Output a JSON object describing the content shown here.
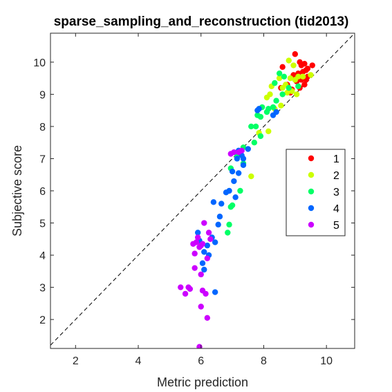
{
  "chart_data": {
    "type": "scatter",
    "title": "sparse_sampling_and_reconstruction (tid2013)",
    "xlabel": "Metric prediction",
    "ylabel": "Subjective score",
    "xlim": [
      1.2,
      10.9
    ],
    "ylim": [
      1.1,
      10.9
    ],
    "xticks": [
      2,
      4,
      6,
      8,
      10
    ],
    "yticks": [
      2,
      3,
      4,
      5,
      6,
      7,
      8,
      9,
      10
    ],
    "grid": false,
    "box": true,
    "legend_position": "right",
    "reference_line": "dashed diagonal y = x",
    "series": [
      {
        "name": "1",
        "color": "#ff0000",
        "points": [
          [
            9.0,
            10.25
          ],
          [
            9.15,
            10.0
          ],
          [
            9.3,
            9.95
          ],
          [
            9.35,
            9.75
          ],
          [
            9.25,
            9.7
          ],
          [
            9.1,
            9.65
          ],
          [
            9.4,
            9.8
          ],
          [
            9.55,
            9.9
          ],
          [
            8.6,
            9.85
          ],
          [
            8.75,
            9.3
          ],
          [
            8.9,
            9.15
          ],
          [
            9.05,
            9.4
          ],
          [
            9.15,
            9.2
          ],
          [
            9.3,
            9.3
          ],
          [
            9.4,
            9.55
          ],
          [
            8.55,
            9.2
          ],
          [
            8.85,
            9.05
          ],
          [
            9.2,
            9.45
          ],
          [
            9.35,
            9.45
          ],
          [
            8.95,
            9.6
          ],
          [
            9.2,
            9.9
          ]
        ]
      },
      {
        "name": "2",
        "color": "#ccff00",
        "points": [
          [
            8.8,
            10.05
          ],
          [
            8.95,
            9.9
          ],
          [
            9.1,
            9.55
          ],
          [
            9.25,
            9.55
          ],
          [
            8.85,
            9.5
          ],
          [
            9.0,
            9.45
          ],
          [
            9.5,
            9.6
          ],
          [
            8.7,
            9.3
          ],
          [
            8.5,
            9.5
          ],
          [
            8.6,
            9.2
          ],
          [
            8.25,
            9.25
          ],
          [
            8.2,
            9.0
          ],
          [
            8.1,
            8.9
          ],
          [
            8.75,
            9.05
          ],
          [
            8.35,
            8.55
          ],
          [
            8.55,
            8.65
          ],
          [
            8.15,
            7.85
          ],
          [
            7.85,
            7.8
          ],
          [
            7.6,
            6.45
          ],
          [
            8.9,
            9.1
          ],
          [
            9.05,
            9.0
          ]
        ]
      },
      {
        "name": "3",
        "color": "#00ff66",
        "points": [
          [
            8.5,
            9.65
          ],
          [
            8.65,
            9.55
          ],
          [
            8.35,
            9.35
          ],
          [
            8.6,
            9.0
          ],
          [
            8.8,
            9.2
          ],
          [
            8.4,
            8.8
          ],
          [
            8.15,
            8.55
          ],
          [
            7.95,
            8.6
          ],
          [
            8.1,
            8.45
          ],
          [
            8.3,
            8.6
          ],
          [
            7.8,
            8.35
          ],
          [
            7.9,
            8.3
          ],
          [
            7.6,
            8.0
          ],
          [
            7.75,
            8.0
          ],
          [
            7.9,
            7.7
          ],
          [
            7.7,
            7.5
          ],
          [
            7.35,
            7.35
          ],
          [
            7.15,
            7.1
          ],
          [
            7.35,
            6.85
          ],
          [
            6.95,
            6.7
          ],
          [
            7.25,
            6.0
          ],
          [
            7.0,
            5.55
          ],
          [
            6.95,
            5.5
          ],
          [
            6.9,
            4.95
          ],
          [
            6.85,
            4.7
          ],
          [
            9.1,
            9.25
          ]
        ]
      },
      {
        "name": "4",
        "color": "#0066ff",
        "points": [
          [
            8.4,
            8.45
          ],
          [
            8.3,
            8.35
          ],
          [
            7.85,
            8.55
          ],
          [
            7.8,
            8.5
          ],
          [
            7.5,
            7.3
          ],
          [
            7.2,
            7.25
          ],
          [
            7.3,
            7.1
          ],
          [
            7.15,
            7.0
          ],
          [
            7.35,
            7.0
          ],
          [
            7.35,
            6.8
          ],
          [
            7.2,
            6.55
          ],
          [
            7.0,
            6.6
          ],
          [
            7.05,
            6.3
          ],
          [
            6.9,
            6.0
          ],
          [
            7.1,
            5.8
          ],
          [
            6.8,
            5.95
          ],
          [
            6.65,
            5.6
          ],
          [
            6.4,
            5.65
          ],
          [
            6.6,
            5.2
          ],
          [
            6.55,
            4.95
          ],
          [
            6.35,
            4.55
          ],
          [
            6.45,
            4.4
          ],
          [
            6.2,
            4.3
          ],
          [
            6.1,
            4.1
          ],
          [
            6.25,
            4.0
          ],
          [
            6.05,
            3.75
          ],
          [
            6.1,
            3.55
          ],
          [
            5.9,
            4.7
          ],
          [
            5.95,
            4.45
          ],
          [
            6.45,
            2.85
          ]
        ]
      },
      {
        "name": "5",
        "color": "#cc00ff",
        "points": [
          [
            7.3,
            7.25
          ],
          [
            7.2,
            7.2
          ],
          [
            7.05,
            7.2
          ],
          [
            6.95,
            7.15
          ],
          [
            6.1,
            5.0
          ],
          [
            6.25,
            4.7
          ],
          [
            6.3,
            4.5
          ],
          [
            5.9,
            4.55
          ],
          [
            5.85,
            4.4
          ],
          [
            6.0,
            4.3
          ],
          [
            5.75,
            4.35
          ],
          [
            6.05,
            4.35
          ],
          [
            5.95,
            4.25
          ],
          [
            5.8,
            4.05
          ],
          [
            6.2,
            3.9
          ],
          [
            5.8,
            3.6
          ],
          [
            6.0,
            3.4
          ],
          [
            5.6,
            3.0
          ],
          [
            5.65,
            2.95
          ],
          [
            5.35,
            3.0
          ],
          [
            5.5,
            2.8
          ],
          [
            6.05,
            2.9
          ],
          [
            6.15,
            2.8
          ],
          [
            6.0,
            2.4
          ],
          [
            6.2,
            2.05
          ],
          [
            5.95,
            1.15
          ]
        ]
      }
    ]
  }
}
